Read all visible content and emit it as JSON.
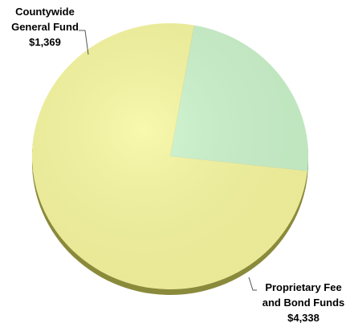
{
  "chart_data": {
    "type": "pie",
    "title": "",
    "unit_prefix": "$",
    "slices": [
      {
        "label_lines": [
          "Countywide",
          "General Fund"
        ],
        "value_text": "$1,369",
        "value": 1369,
        "color": "#ccf5cc",
        "side_color": "#8fa870"
      },
      {
        "label_lines": [
          "Proprietary Fee",
          "and Bond Funds"
        ],
        "value_text": "$4,338",
        "value": 4338,
        "color": "#f8f8a0",
        "side_color": "#8a8a3c"
      }
    ],
    "start_angle_deg": -80,
    "legend": "none",
    "data_labels": "outside-with-leader-lines"
  }
}
